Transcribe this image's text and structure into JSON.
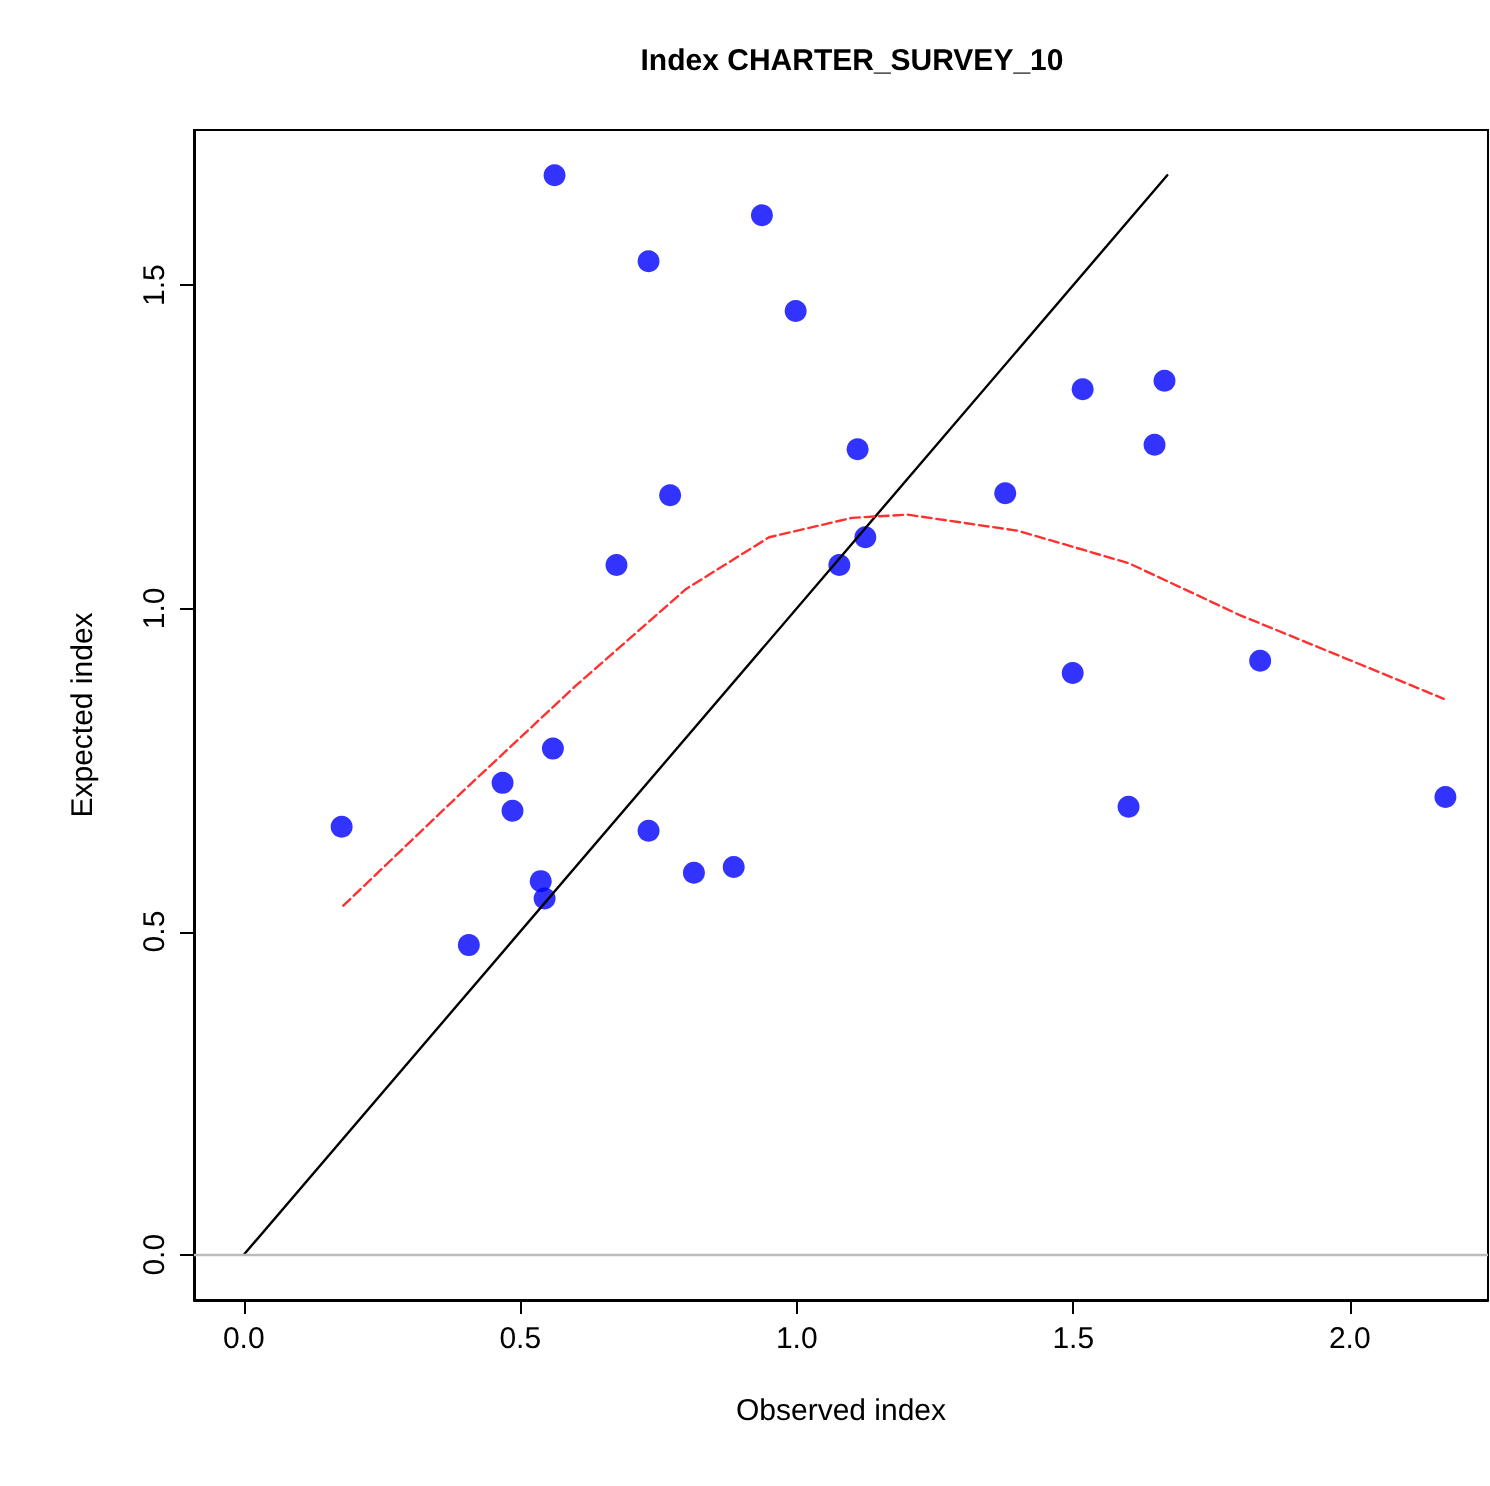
{
  "chart_data": {
    "type": "scatter",
    "title": "Index CHARTER_SURVEY_10",
    "xlabel": "Observed index",
    "ylabel": "Expected index",
    "xlim": [
      -0.09,
      2.25
    ],
    "ylim": [
      -0.07,
      1.74
    ],
    "xticks": [
      {
        "value": 0,
        "label": "0.0"
      },
      {
        "value": 0.5,
        "label": "0.5"
      },
      {
        "value": 1,
        "label": "1.0"
      },
      {
        "value": 1.5,
        "label": "1.5"
      },
      {
        "value": 2,
        "label": "2.0"
      }
    ],
    "yticks": [
      {
        "value": 0,
        "label": "0.0"
      },
      {
        "value": 0.5,
        "label": "0.5"
      },
      {
        "value": 1,
        "label": "1.0"
      },
      {
        "value": 1.5,
        "label": "1.5"
      }
    ],
    "grid": false,
    "ref_lines": [
      {
        "axis": "y",
        "value": 0,
        "color": "#bbbbbb"
      }
    ],
    "series": [
      {
        "color": "#0000ff",
        "marker": "circle",
        "x": [
          0.562,
          0.937,
          0.732,
          0.998,
          0.771,
          0.674,
          1.11,
          1.077,
          1.124,
          1.377,
          1.517,
          1.665,
          1.647,
          1.499,
          1.838,
          1.6,
          2.173,
          0.177,
          0.559,
          0.468,
          0.486,
          0.732,
          0.814,
          0.886,
          0.537,
          0.544,
          0.407
        ],
        "values": [
          1.67,
          1.608,
          1.537,
          1.46,
          1.175,
          1.067,
          1.246,
          1.067,
          1.11,
          1.178,
          1.339,
          1.352,
          1.253,
          0.9,
          0.919,
          0.693,
          0.708,
          0.662,
          0.783,
          0.73,
          0.687,
          0.656,
          0.591,
          0.6,
          0.578,
          0.551,
          0.479
        ]
      },
      {
        "type": "line",
        "color": "#000000",
        "marker": "none",
        "line_style": "solid",
        "x": [
          0,
          1.67
        ],
        "values": [
          0,
          1.67
        ]
      },
      {
        "type": "line",
        "color": "#ff3030",
        "marker": "none",
        "line_style": "dashed",
        "x": [
          0.18,
          0.4,
          0.6,
          0.8,
          0.95,
          1.1,
          1.2,
          1.4,
          1.6,
          1.8,
          2.0,
          2.17
        ],
        "values": [
          0.54,
          0.72,
          0.88,
          1.03,
          1.11,
          1.14,
          1.145,
          1.12,
          1.07,
          0.99,
          0.92,
          0.86
        ]
      }
    ]
  }
}
